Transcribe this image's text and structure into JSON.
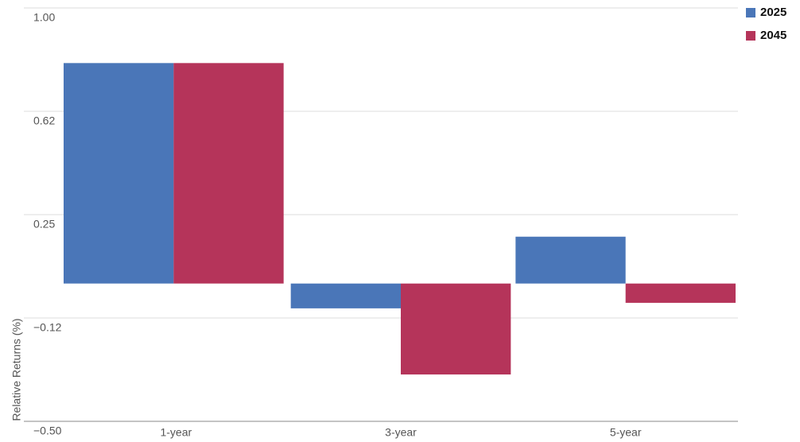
{
  "chart_data": {
    "type": "bar",
    "y_label": "Relative Returns (%)",
    "categories": [
      "1-year",
      "3-year",
      "5-year"
    ],
    "series": [
      {
        "name": "2025",
        "color": "#4a76b8",
        "values": [
          0.8,
          -0.09,
          0.17
        ]
      },
      {
        "name": "2045",
        "color": "#b5345a",
        "values": [
          0.8,
          -0.33,
          -0.07
        ]
      }
    ],
    "ylim": [
      -0.5,
      1
    ],
    "yticks": [
      {
        "value": 1,
        "label": "1.00"
      },
      {
        "value": 0.625,
        "label": "0.62"
      },
      0.25,
      {
        "value": -0.125,
        "label": "−0.12"
      },
      {
        "value": -0.5,
        "label": "−0.50"
      }
    ],
    "grid": true,
    "legend": "top-right"
  }
}
